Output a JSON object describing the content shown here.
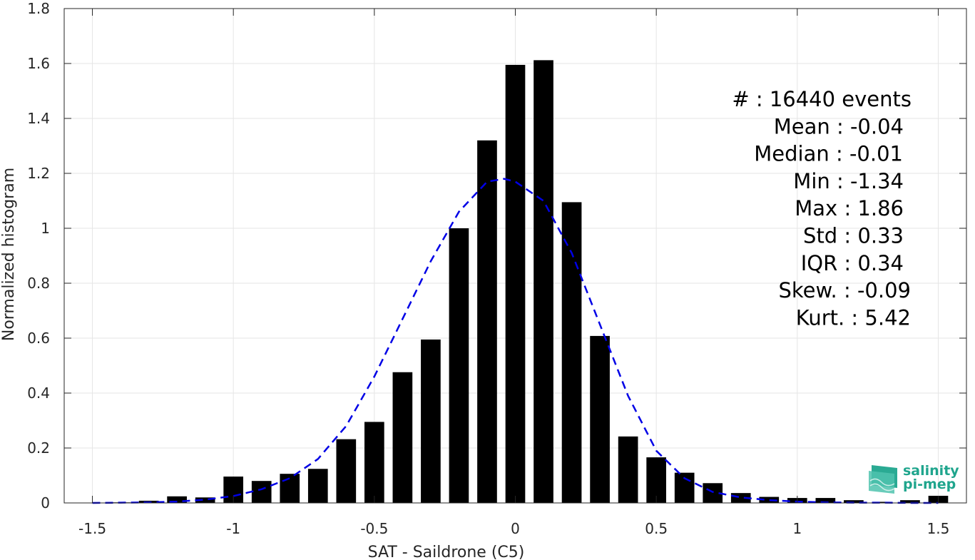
{
  "chart_data": {
    "type": "bar",
    "xlabel": "SAT - Saildrone (C5)",
    "ylabel": "Normalized histogram",
    "xlim": [
      -1.6,
      1.6
    ],
    "ylim": [
      0,
      1.8
    ],
    "xticks": [
      -1.5,
      -1,
      -0.5,
      0,
      0.5,
      1,
      1.5
    ],
    "xtick_labels": [
      "-1.5",
      "-1",
      "-0.5",
      "0",
      "0.5",
      "1",
      "1.5"
    ],
    "yticks": [
      0,
      0.2,
      0.4,
      0.6,
      0.8,
      1,
      1.2,
      1.4,
      1.6,
      1.8
    ],
    "ytick_labels": [
      "0",
      "0.2",
      "0.4",
      "0.6",
      "0.8",
      "1",
      "1.2",
      "1.4",
      "1.6",
      "1.8"
    ],
    "grid": true,
    "bar_width": 0.07,
    "x": [
      -1.5,
      -1.4,
      -1.3,
      -1.2,
      -1.1,
      -1.0,
      -0.9,
      -0.8,
      -0.7,
      -0.6,
      -0.5,
      -0.4,
      -0.3,
      -0.2,
      -0.1,
      0.0,
      0.1,
      0.2,
      0.3,
      0.4,
      0.5,
      0.6,
      0.7,
      0.8,
      0.9,
      1.0,
      1.1,
      1.2,
      1.3,
      1.4,
      1.5
    ],
    "values": [
      0.0,
      0.002,
      0.008,
      0.024,
      0.02,
      0.096,
      0.08,
      0.106,
      0.124,
      0.232,
      0.295,
      0.476,
      0.595,
      1.0,
      1.32,
      1.595,
      1.612,
      1.095,
      0.608,
      0.242,
      0.166,
      0.11,
      0.072,
      0.036,
      0.022,
      0.018,
      0.018,
      0.01,
      0.004,
      0.01,
      0.026
    ],
    "fit_curve": {
      "style": "dashed",
      "color": "#0000e6",
      "x": [
        -1.5,
        -1.4,
        -1.3,
        -1.2,
        -1.1,
        -1.0,
        -0.9,
        -0.8,
        -0.7,
        -0.6,
        -0.5,
        -0.4,
        -0.3,
        -0.2,
        -0.1,
        -0.04,
        0.0,
        0.1,
        0.2,
        0.3,
        0.4,
        0.5,
        0.6,
        0.7,
        0.8,
        0.9,
        1.0,
        1.1,
        1.2,
        1.3,
        1.4,
        1.5
      ],
      "y": [
        0.0,
        0.001,
        0.002,
        0.005,
        0.012,
        0.025,
        0.05,
        0.09,
        0.16,
        0.28,
        0.46,
        0.67,
        0.88,
        1.06,
        1.17,
        1.18,
        1.17,
        1.1,
        0.91,
        0.65,
        0.39,
        0.19,
        0.09,
        0.04,
        0.02,
        0.01,
        0.005,
        0.002,
        0.001,
        0.001,
        0.0,
        0.0
      ]
    },
    "stats": [
      "#  : 16440 events",
      "Mean : -0.04",
      "Median : -0.01",
      "Min : -1.34",
      "Max : 1.86",
      "Std : 0.33",
      "IQR : 0.34",
      "Skew. : -0.09",
      "Kurt. : 5.42"
    ],
    "bar_color": "#000000",
    "grid_color": "#e6e6e6"
  },
  "logo": {
    "line1": "salinity",
    "line2": "pi-mep",
    "color": "#1fa58d"
  }
}
